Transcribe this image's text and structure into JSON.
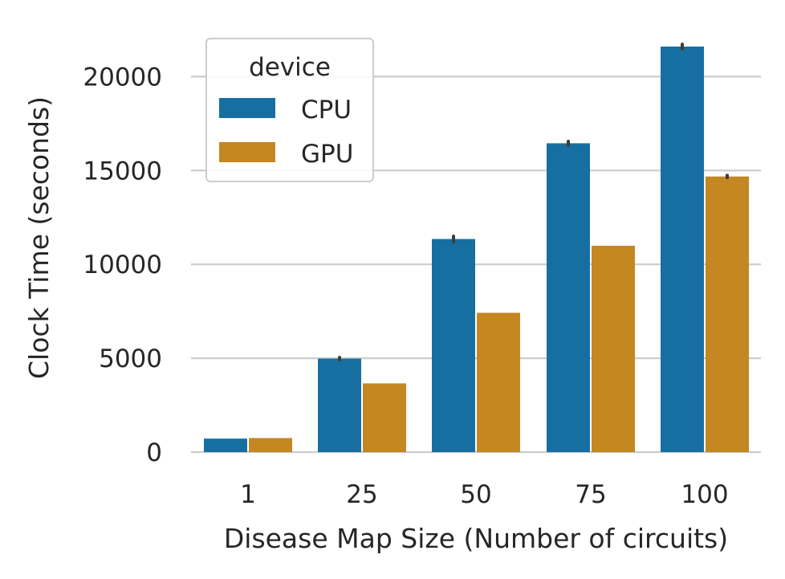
{
  "chart_data": {
    "type": "bar",
    "title": "",
    "xlabel": "Disease Map Size (Number of circuits)",
    "ylabel": "Clock Time (seconds)",
    "categories": [
      "1",
      "25",
      "50",
      "75",
      "100"
    ],
    "ylim": [
      0,
      23000
    ],
    "yticks": [
      "0",
      "5000",
      "10000",
      "15000",
      "20000"
    ],
    "grid": "horizontal",
    "legend": {
      "title": "device",
      "placement": "top-left"
    },
    "series": [
      {
        "name": "CPU",
        "values": [
          720,
          4980,
          11350,
          16450,
          21600
        ],
        "error": [
          0,
          60,
          150,
          100,
          120
        ],
        "color": "#176fa1"
      },
      {
        "name": "GPU",
        "values": [
          750,
          3660,
          7420,
          10990,
          14680
        ],
        "error": [
          0,
          0,
          0,
          0,
          60
        ],
        "color": "#c48722"
      }
    ]
  }
}
